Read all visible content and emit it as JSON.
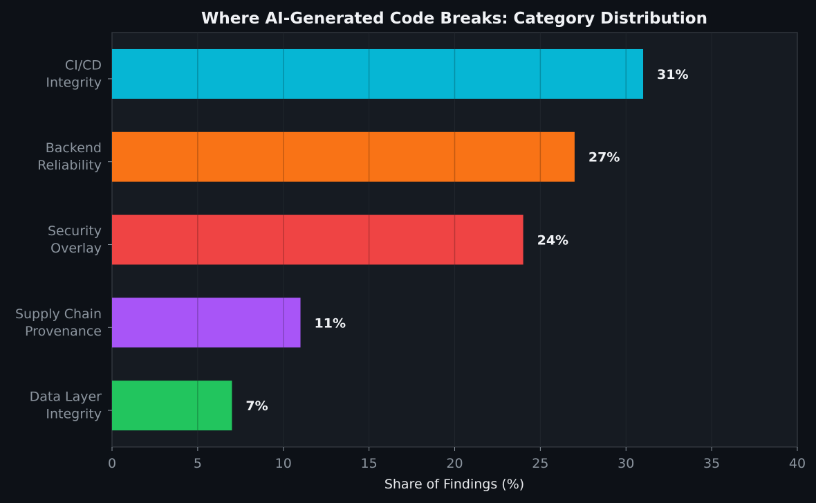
{
  "chart_data": {
    "type": "bar",
    "orientation": "horizontal",
    "title": "Where AI-Generated Code Breaks: Category Distribution",
    "xlabel": "Share of Findings (%)",
    "ylabel": "",
    "xlim": [
      0,
      40
    ],
    "xticks": [
      "0",
      "5",
      "10",
      "15",
      "20",
      "25",
      "30",
      "35",
      "40"
    ],
    "grid": true,
    "categories": [
      [
        "CI/CD",
        "Integrity"
      ],
      [
        "Backend",
        "Reliability"
      ],
      [
        "Security",
        "Overlay"
      ],
      [
        "Supply Chain",
        "Provenance"
      ],
      [
        "Data Layer",
        "Integrity"
      ]
    ],
    "values": [
      31,
      27,
      24,
      11,
      7
    ],
    "value_labels": [
      "31%",
      "27%",
      "24%",
      "11%",
      "7%"
    ],
    "colors": [
      "#06b6d4",
      "#f97316",
      "#ef4444",
      "#a855f7",
      "#22c55e"
    ]
  },
  "theme": {
    "background": "#0d1117",
    "plot_background": "#161b22",
    "axis_color": "#30363d",
    "text_muted": "#8b949e",
    "text_bright": "#f0f2f5"
  }
}
